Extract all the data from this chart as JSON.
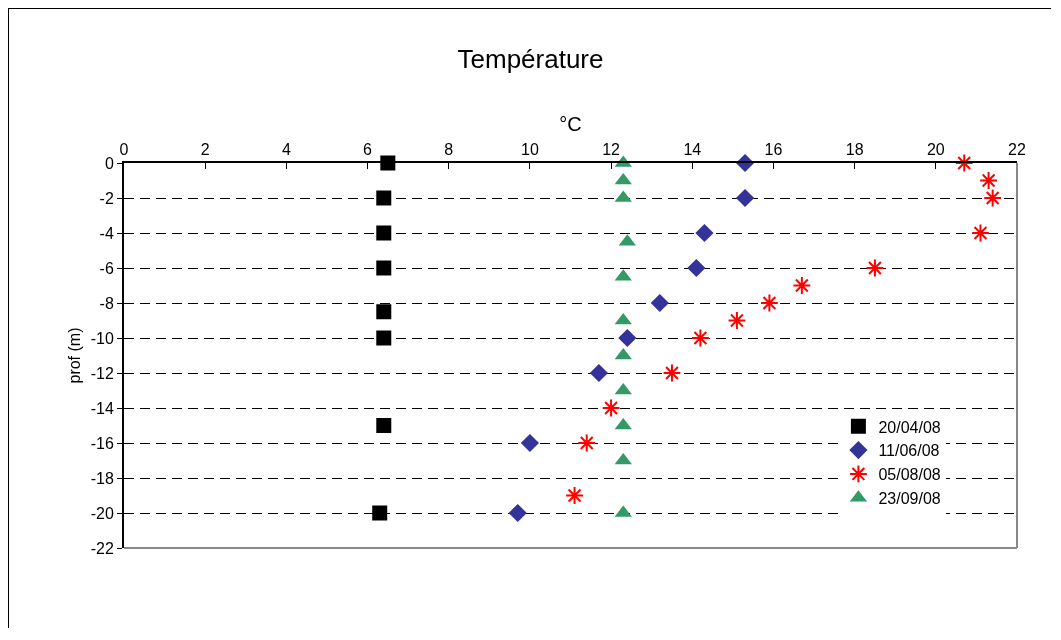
{
  "chart_data": {
    "type": "scatter",
    "title": "Température",
    "xlabel": "°C",
    "ylabel": "prof (m)",
    "xlim": [
      0,
      22
    ],
    "xticks": [
      0,
      2,
      4,
      6,
      8,
      10,
      12,
      14,
      16,
      18,
      20,
      22
    ],
    "ylim": [
      -22,
      0
    ],
    "yticks": [
      0,
      -2,
      -4,
      -6,
      -8,
      -10,
      -12,
      -14,
      -16,
      -18,
      -20,
      -22
    ],
    "grid": "y",
    "legend": "right",
    "series": [
      {
        "name": "20/04/08",
        "color": "#000000",
        "marker": "square",
        "x": [
          6.5,
          6.4,
          6.4,
          6.4,
          6.4,
          6.4,
          6.4,
          6.3
        ],
        "values": [
          0,
          -2,
          -4,
          -6,
          -8.5,
          -10,
          -15,
          -20
        ]
      },
      {
        "name": "11/06/08",
        "color": "#333399",
        "marker": "diamond",
        "x": [
          15.3,
          15.3,
          14.3,
          14.1,
          13.2,
          12.4,
          11.7,
          10,
          9.7
        ],
        "values": [
          0,
          -2,
          -4,
          -6,
          -8,
          -10,
          -12,
          -16,
          -20
        ]
      },
      {
        "name": "05/08/08",
        "color": "#ff0000",
        "marker": "cross",
        "x": [
          20.7,
          21.3,
          21.4,
          21.1,
          18.5,
          16.7,
          15.9,
          15.1,
          14.2,
          13.5,
          12,
          11.4,
          11.1
        ],
        "values": [
          0,
          -1,
          -2,
          -4,
          -6,
          -7,
          -8,
          -9,
          -10,
          -12,
          -14,
          -16,
          -19
        ]
      },
      {
        "name": "23/09/08",
        "color": "#339966",
        "marker": "triangle",
        "x": [
          12.3,
          12.3,
          12.3,
          12.4,
          12.3,
          12.3,
          12.3,
          12.3,
          12.3,
          12.3,
          12.3
        ],
        "values": [
          0,
          -1,
          -2,
          -4.5,
          -6.5,
          -9,
          -11,
          -13,
          -15,
          -17,
          -20
        ]
      }
    ]
  }
}
